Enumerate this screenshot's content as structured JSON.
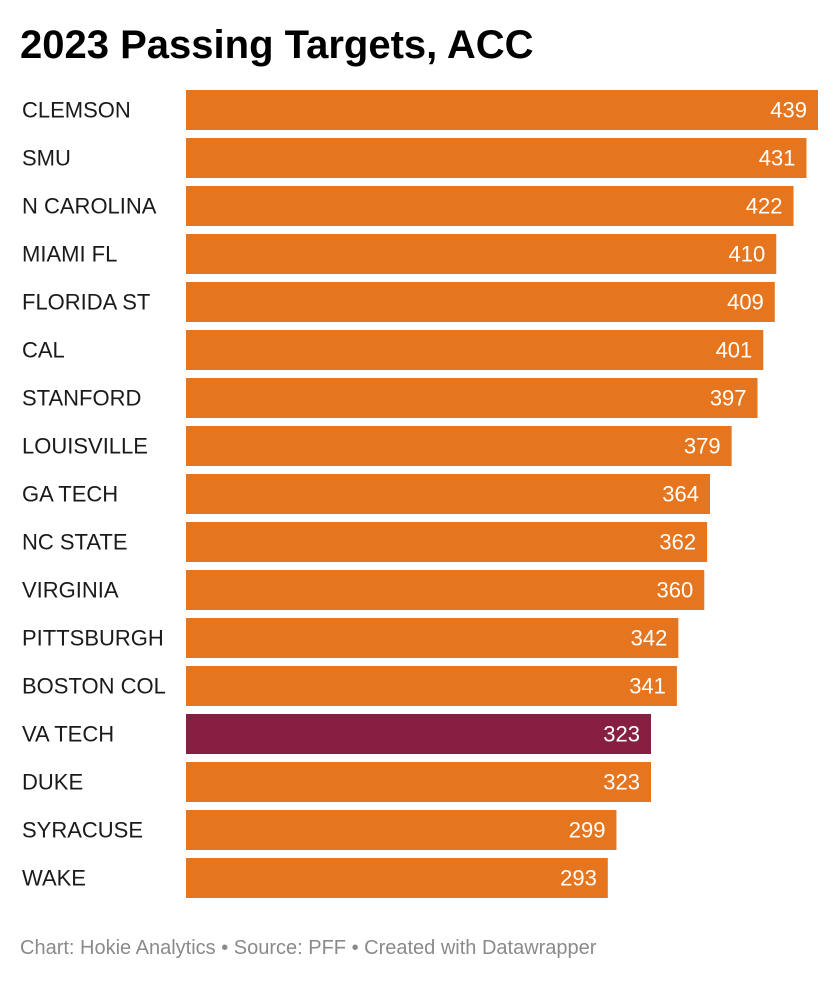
{
  "chart_data": {
    "type": "bar",
    "orientation": "horizontal",
    "title": "2023 Passing Targets, ACC",
    "categories": [
      "CLEMSON",
      "SMU",
      "N CAROLINA",
      "MIAMI FL",
      "FLORIDA ST",
      "CAL",
      "STANFORD",
      "LOUISVILLE",
      "GA TECH",
      "NC STATE",
      "VIRGINIA",
      "PITTSBURGH",
      "BOSTON COL",
      "VA TECH",
      "DUKE",
      "SYRACUSE",
      "WAKE"
    ],
    "values": [
      439,
      431,
      422,
      410,
      409,
      401,
      397,
      379,
      364,
      362,
      360,
      342,
      341,
      323,
      323,
      299,
      293
    ],
    "highlight": "VA TECH",
    "xlim": [
      0,
      439
    ],
    "grid": false,
    "legend": "none"
  },
  "colors": {
    "bar": "#E5761F",
    "highlight": "#861F41",
    "value_label": "#ffffff",
    "category_label": "#1a1a1a",
    "footer": "#8a8a8a"
  },
  "footer": "Chart: Hokie Analytics • Source: PFF • Created with Datawrapper"
}
